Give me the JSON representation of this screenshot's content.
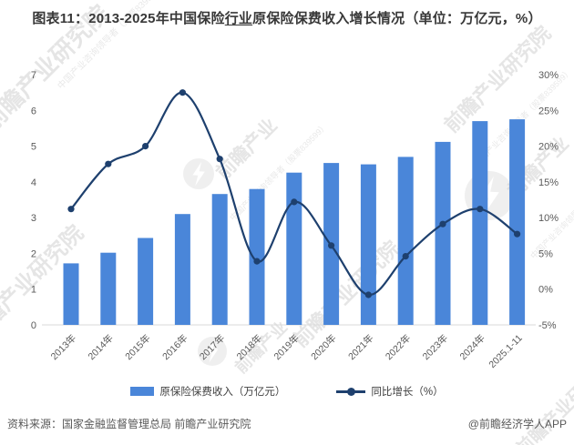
{
  "title": {
    "prefix": "图表11：2013-2025年中国保险",
    "underlined": "行业",
    "suffix": "原保险保费收入增长情况（单位：万亿元，%）"
  },
  "chart_data": {
    "type": "bar+line",
    "title": "图表11：2013-2025年中国保险行业原保险保费收入增长情况（单位：万亿元，%）",
    "categories": [
      "2013年",
      "2014年",
      "2015年",
      "2016年",
      "2017年",
      "2018年",
      "2019年",
      "2020年",
      "2021年",
      "2022年",
      "2023年",
      "2024年",
      "2025.1-11"
    ],
    "series": [
      {
        "name": "原保险保费收入（万亿元）",
        "type": "bar",
        "axis": "left",
        "color": "#4a86d9",
        "values": [
          1.72,
          2.02,
          2.43,
          3.1,
          3.66,
          3.8,
          4.26,
          4.53,
          4.49,
          4.7,
          5.12,
          5.7,
          5.75
        ]
      },
      {
        "name": "同比增长（%）",
        "type": "line",
        "axis": "right",
        "color": "#1e406e",
        "values": [
          11.2,
          17.5,
          20.0,
          27.5,
          18.2,
          3.9,
          12.2,
          6.1,
          -0.8,
          4.6,
          9.1,
          11.2,
          7.7
        ]
      }
    ],
    "left_axis": {
      "min": 0,
      "max": 7,
      "step": 1
    },
    "right_axis": {
      "min": -5,
      "max": 30,
      "step": 5,
      "suffix": "%"
    },
    "grid": false,
    "legend_position": "bottom"
  },
  "footer": {
    "source": "资料来源：国家金融监督管理总局 前瞻产业研究院",
    "credit": "@前瞻经济学人APP"
  },
  "watermarks": {
    "brand": "前瞻产业研究院",
    "brand_short": "前瞻产业",
    "tagline": "中国产业咨询领导者（股票839599）"
  },
  "colors": {
    "bar": "#4a86d9",
    "line": "#1e406e",
    "axis_text": "#595959",
    "axis_line": "#d9d9d9"
  }
}
